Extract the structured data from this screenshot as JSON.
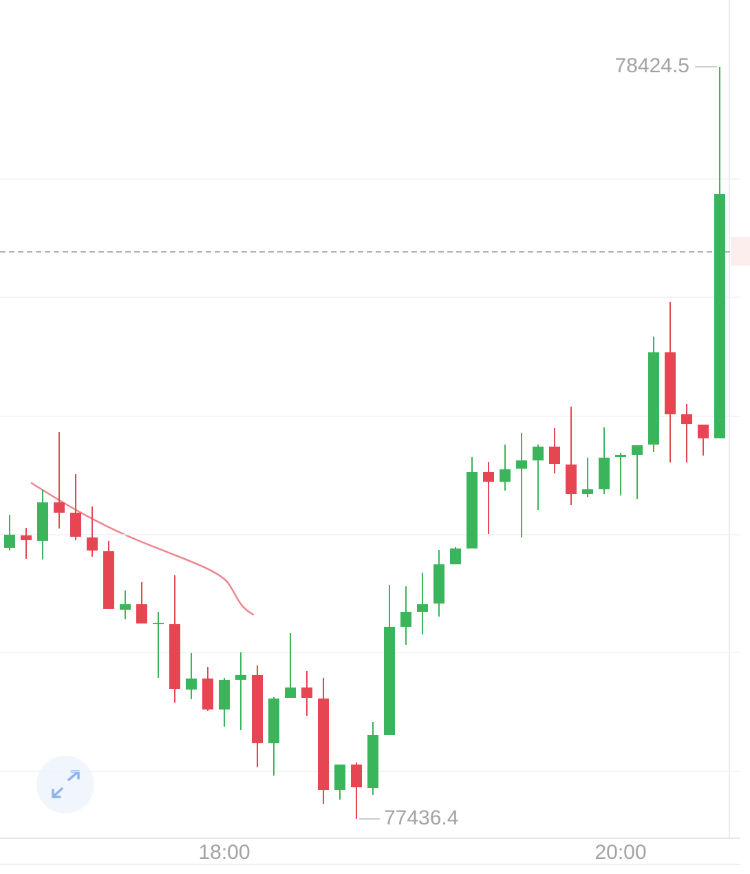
{
  "chart_data": {
    "type": "candlestick",
    "categories": [
      null,
      null,
      null,
      null,
      null,
      null,
      null,
      null,
      null,
      null,
      null,
      null,
      null,
      "18:00",
      null,
      null,
      null,
      null,
      null,
      null,
      null,
      null,
      null,
      null,
      null,
      null,
      null,
      null,
      null,
      null,
      null,
      null,
      null,
      null,
      null,
      null,
      null,
      "20:00",
      null,
      null,
      null,
      null,
      null,
      null
    ],
    "open": [
      77792.6,
      77808.9,
      77801.7,
      77852.3,
      77838.7,
      77806.2,
      77788.1,
      77711.3,
      77718.5,
      77692.3,
      77692.3,
      77606.4,
      77620.9,
      77580.2,
      77619.1,
      77625.4,
      77535.9,
      77595.5,
      77609.1,
      77594.6,
      77474.4,
      77507.9,
      77477.1,
      77546.7,
      77688.7,
      77708.5,
      77719.4,
      77770.9,
      77791.7,
      77892.1,
      77879.4,
      77896.6,
      77907.4,
      77925.5,
      77902.0,
      77863.1,
      77869.5,
      77911.9,
      77914.7,
      77928.2,
      78049.4,
      77968.0,
      77954.4,
      77936.4
    ],
    "high": [
      77836.0,
      77818.8,
      77868.6,
      77944.5,
      77889.3,
      77846.9,
      77801.7,
      77736.6,
      77747.4,
      77708.5,
      77756.5,
      77654.3,
      77636.2,
      77621.8,
      77655.2,
      77638.0,
      77596.5,
      77680.5,
      77630.8,
      77621.8,
      77507.9,
      77510.6,
      77563.9,
      77743.8,
      77742.0,
      77760.1,
      77789.9,
      77793.5,
      77911.9,
      77905.6,
      77928.2,
      77943.6,
      77928.2,
      77949.9,
      77978.0,
      77911.0,
      77950.8,
      77917.4,
      77927.3,
      78070.1,
      78115.3,
      77981.6,
      77954.4,
      78424.5
    ],
    "low": [
      77789.0,
      77778.2,
      77777.3,
      77817.9,
      77802.6,
      77780.9,
      77712.2,
      77698.6,
      77693.2,
      77621.8,
      77589.2,
      77593.7,
      77578.4,
      77557.6,
      77553.1,
      77504.2,
      77493.4,
      77595.5,
      77572.0,
      77456.3,
      77461.8,
      77436.4,
      77468.1,
      77546.7,
      77665.2,
      77678.7,
      77702.2,
      77770.9,
      77791.7,
      77810.7,
      77867.7,
      77806.2,
      77842.3,
      77890.3,
      77848.7,
      77859.5,
      77863.1,
      77861.3,
      77856.8,
      77918.3,
      77904.7,
      77904.7,
      77913.8,
      77936.4
    ],
    "close": [
      77809.8,
      77802.6,
      77852.3,
      77838.7,
      77807.1,
      77789.0,
      77712.2,
      77718.5,
      77693.2,
      77694.1,
      77607.3,
      77620.9,
      77580.2,
      77619.1,
      77625.4,
      77535.9,
      77594.6,
      77609.1,
      77595.5,
      77474.4,
      77507.9,
      77478.0,
      77546.7,
      77688.7,
      77708.5,
      77718.5,
      77770.9,
      77791.7,
      77892.1,
      77879.4,
      77895.7,
      77907.4,
      77925.5,
      77902.9,
      77863.1,
      77869.5,
      77911.0,
      77914.7,
      77927.3,
      78049.4,
      77968.0,
      77955.3,
      77936.4,
      78257.3
    ],
    "up_color": "#3bb55b",
    "down_color": "#e64552",
    "ylim": [
      77411.1,
      78512.2
    ],
    "grid_lines": [
      77498.8,
      77655.2,
      77809.8,
      77965.3,
      78121.7,
      78277.2
    ],
    "current_price": 78181.3
  }
}
